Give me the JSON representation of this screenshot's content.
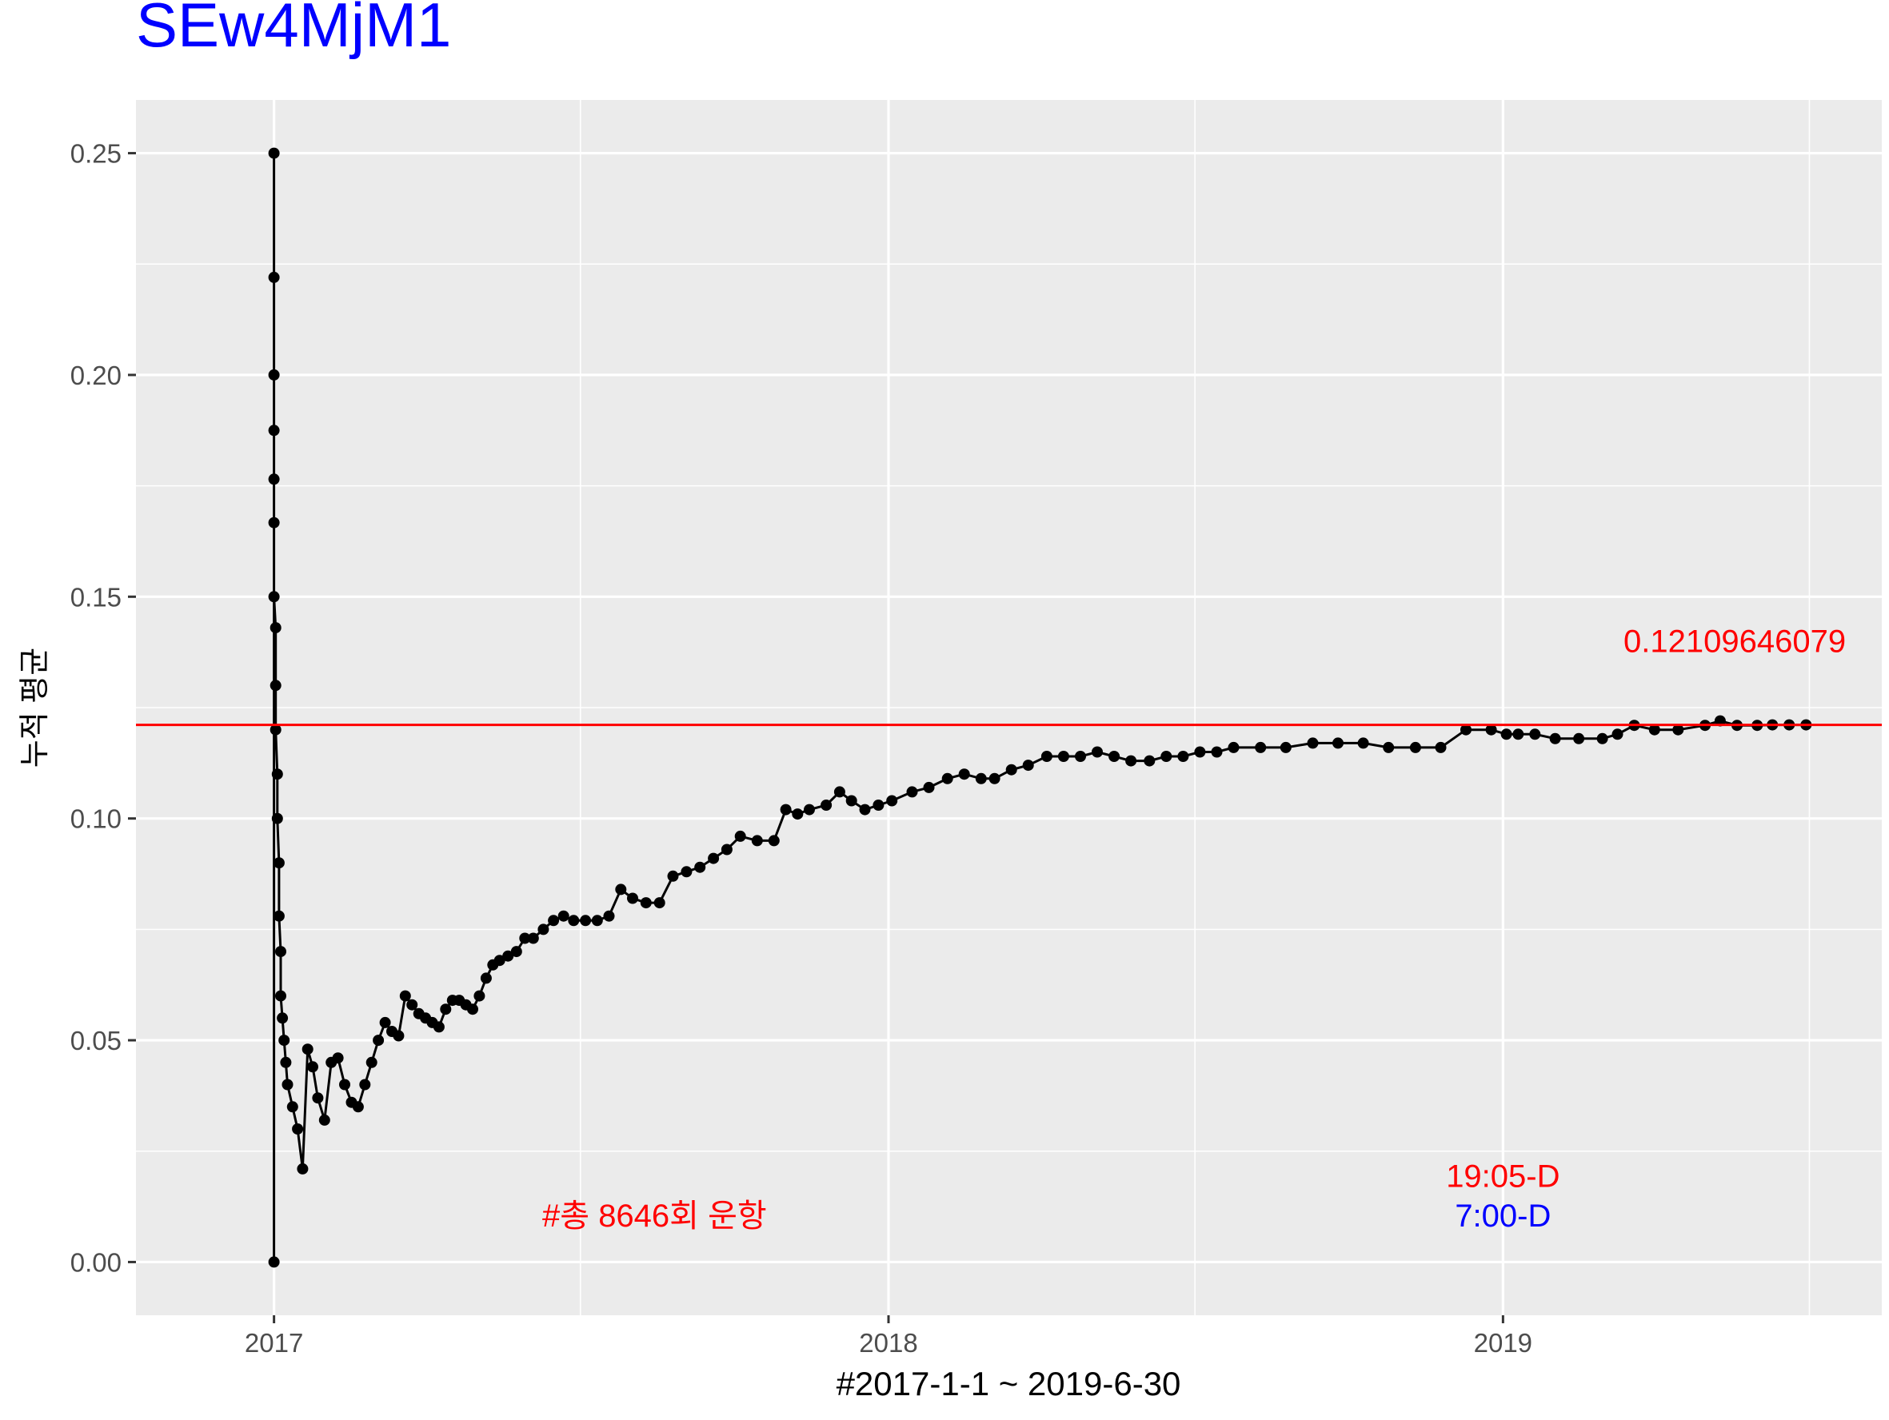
{
  "chart_data": {
    "type": "line",
    "title": "SEw4MjM1",
    "xlabel": "#2017-1-1 ~ 2019-6-30",
    "ylabel": "누적 평균",
    "x_ticks": [
      "2017",
      "2018",
      "2019"
    ],
    "y_ticks": [
      "0.00",
      "0.05",
      "0.10",
      "0.15",
      "0.20",
      "0.25"
    ],
    "xlim": [
      "2016-10-11",
      "2019-08-14"
    ],
    "ylim": [
      -0.012,
      0.262
    ],
    "grid": true,
    "reference_line": {
      "value": 0.1210964607,
      "label": "0.12109646079",
      "color": "#ff0000"
    },
    "annotations": [
      {
        "text": "#총 8646회 운항",
        "color": "#ff0000",
        "x": "2017-08-15",
        "y": 0.0105
      },
      {
        "text": "19:05-D",
        "color": "#ff0000",
        "x": "2019-01-01",
        "y": 0.0195
      },
      {
        "text": "7:00-D",
        "color": "#0000ff",
        "x": "2019-01-01",
        "y": 0.0105
      }
    ],
    "series": [
      {
        "x": [
          "2017-01-01",
          "2017-01-01",
          "2017-01-01",
          "2017-01-01",
          "2017-01-01",
          "2017-01-01",
          "2017-01-01",
          "2017-01-01",
          "2017-01-02",
          "2017-01-02",
          "2017-01-02",
          "2017-01-03",
          "2017-01-03",
          "2017-01-04",
          "2017-01-04",
          "2017-01-05",
          "2017-01-05",
          "2017-01-06",
          "2017-01-07",
          "2017-01-08",
          "2017-01-09",
          "2017-01-12",
          "2017-01-15",
          "2017-01-18",
          "2017-01-21",
          "2017-01-24",
          "2017-01-27",
          "2017-01-31",
          "2017-02-04",
          "2017-02-08",
          "2017-02-12",
          "2017-02-16",
          "2017-02-20",
          "2017-02-24",
          "2017-02-28",
          "2017-03-04",
          "2017-03-08",
          "2017-03-12",
          "2017-03-16",
          "2017-03-20",
          "2017-03-24",
          "2017-03-28",
          "2017-04-01",
          "2017-04-05",
          "2017-04-09",
          "2017-04-13",
          "2017-04-17",
          "2017-04-21",
          "2017-04-25",
          "2017-04-29",
          "2017-05-03",
          "2017-05-07",
          "2017-05-11",
          "2017-05-15",
          "2017-05-20",
          "2017-05-25",
          "2017-05-30",
          "2017-06-04",
          "2017-06-10",
          "2017-06-16",
          "2017-06-22",
          "2017-06-28",
          "2017-07-05",
          "2017-07-12",
          "2017-07-19",
          "2017-07-26",
          "2017-08-02",
          "2017-08-10",
          "2017-08-18",
          "2017-08-26",
          "2017-09-03",
          "2017-09-11",
          "2017-09-19",
          "2017-09-27",
          "2017-10-05",
          "2017-10-15",
          "2017-10-25",
          "2017-11-01",
          "2017-11-08",
          "2017-11-15",
          "2017-11-25",
          "2017-12-03",
          "2017-12-10",
          "2017-12-18",
          "2017-12-26",
          "2018-01-03",
          "2018-01-15",
          "2018-01-25",
          "2018-02-05",
          "2018-02-15",
          "2018-02-25",
          "2018-03-05",
          "2018-03-15",
          "2018-03-25",
          "2018-04-05",
          "2018-04-15",
          "2018-04-25",
          "2018-05-05",
          "2018-05-15",
          "2018-05-25",
          "2018-06-05",
          "2018-06-15",
          "2018-06-25",
          "2018-07-05",
          "2018-07-15",
          "2018-07-25",
          "2018-08-10",
          "2018-08-25",
          "2018-09-10",
          "2018-09-25",
          "2018-10-10",
          "2018-10-25",
          "2018-11-10",
          "2018-11-25",
          "2018-12-10",
          "2018-12-25",
          "2019-01-03",
          "2019-01-10",
          "2019-01-20",
          "2019-02-01",
          "2019-02-15",
          "2019-03-01",
          "2019-03-10",
          "2019-03-20",
          "2019-04-01",
          "2019-04-15",
          "2019-05-01",
          "2019-05-10",
          "2019-05-20",
          "2019-06-01",
          "2019-06-10",
          "2019-06-20",
          "2019-06-30"
        ],
        "values": [
          0.0,
          0.25,
          0.222,
          0.2,
          0.1875,
          0.1765,
          0.1667,
          0.15,
          0.143,
          0.13,
          0.12,
          0.11,
          0.1,
          0.09,
          0.078,
          0.07,
          0.06,
          0.055,
          0.05,
          0.045,
          0.04,
          0.035,
          0.03,
          0.021,
          0.048,
          0.044,
          0.037,
          0.032,
          0.045,
          0.046,
          0.04,
          0.036,
          0.035,
          0.04,
          0.045,
          0.05,
          0.054,
          0.052,
          0.051,
          0.06,
          0.058,
          0.056,
          0.055,
          0.054,
          0.053,
          0.057,
          0.059,
          0.059,
          0.058,
          0.057,
          0.06,
          0.064,
          0.067,
          0.068,
          0.069,
          0.07,
          0.073,
          0.073,
          0.075,
          0.077,
          0.078,
          0.077,
          0.077,
          0.077,
          0.078,
          0.084,
          0.082,
          0.081,
          0.081,
          0.087,
          0.088,
          0.089,
          0.091,
          0.093,
          0.096,
          0.095,
          0.095,
          0.102,
          0.101,
          0.102,
          0.103,
          0.106,
          0.104,
          0.102,
          0.103,
          0.104,
          0.106,
          0.107,
          0.109,
          0.11,
          0.109,
          0.109,
          0.111,
          0.112,
          0.114,
          0.114,
          0.114,
          0.115,
          0.114,
          0.113,
          0.113,
          0.114,
          0.114,
          0.115,
          0.115,
          0.116,
          0.116,
          0.116,
          0.117,
          0.117,
          0.117,
          0.116,
          0.116,
          0.116,
          0.12,
          0.12,
          0.119,
          0.119,
          0.119,
          0.118,
          0.118,
          0.118,
          0.119,
          0.121,
          0.12,
          0.12,
          0.121,
          0.122,
          0.121,
          0.121,
          0.1211,
          0.1211,
          0.1211
        ]
      }
    ]
  }
}
